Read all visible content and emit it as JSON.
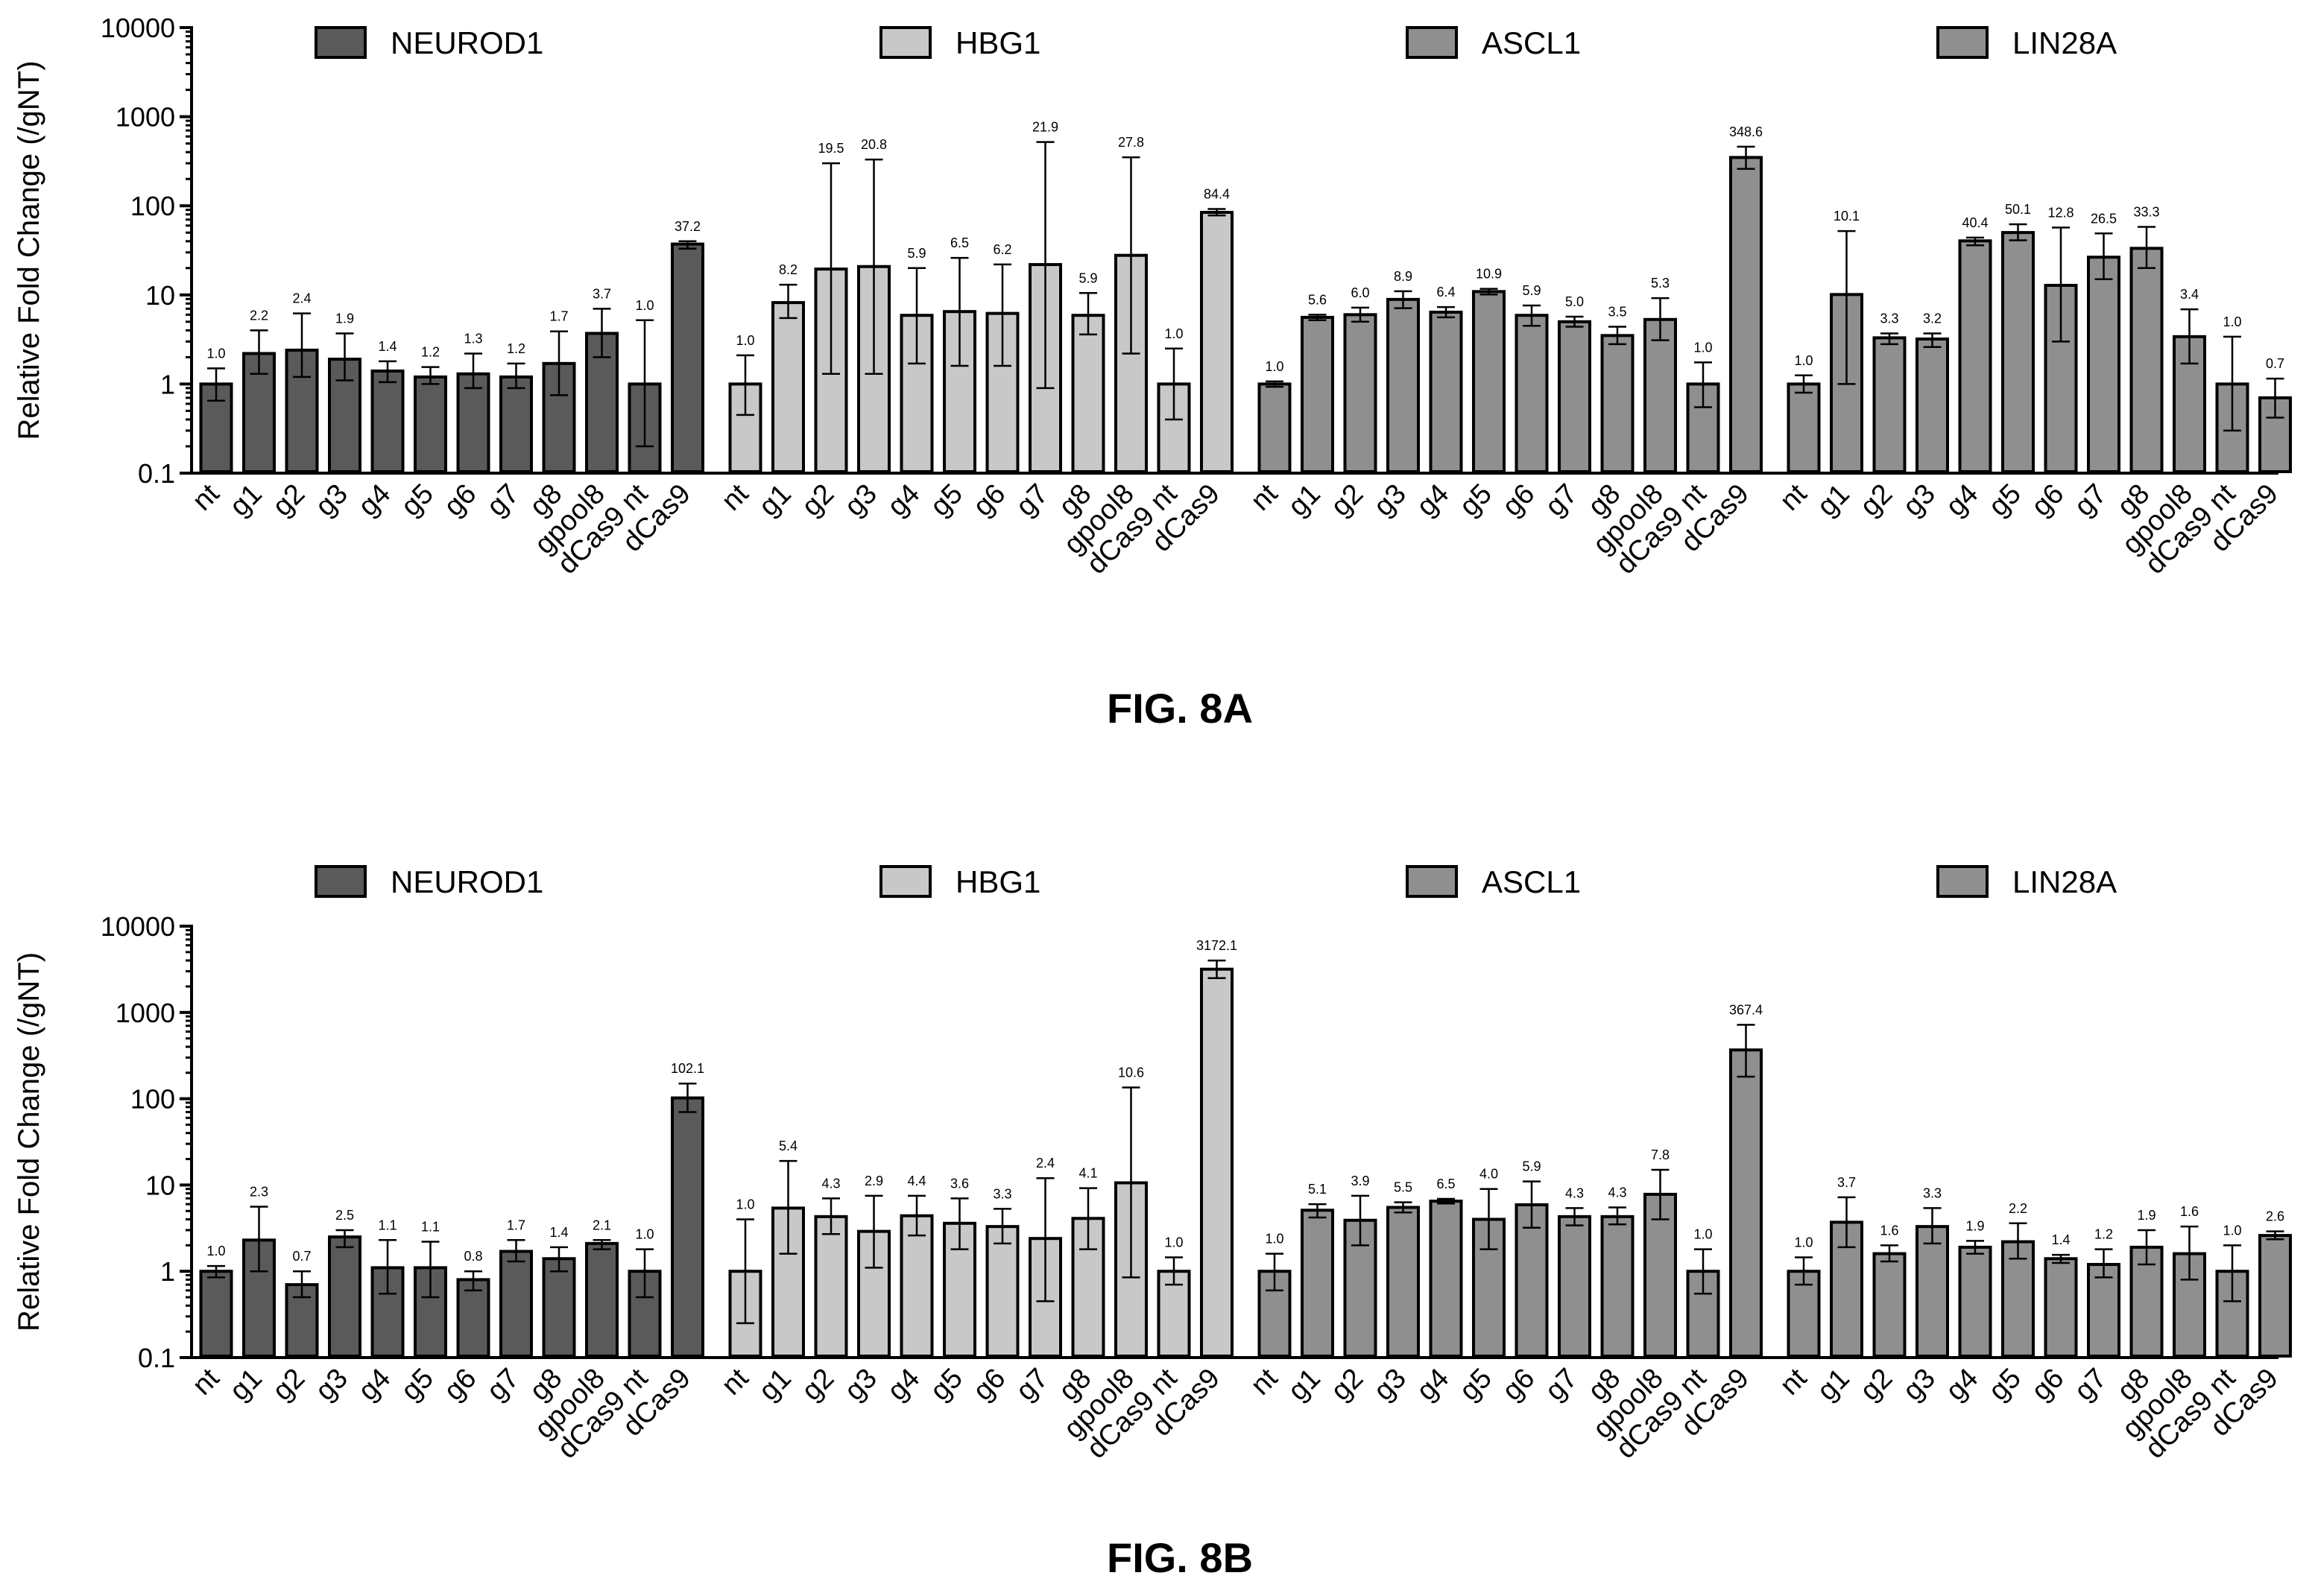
{
  "chart_data": [
    {
      "type": "bar",
      "caption": "FIG. 8A",
      "ylabel": "Relative Fold Change (/gNT)",
      "yscale": "log",
      "ylim": [
        0.1,
        10000
      ],
      "yticks": [
        "0.1",
        "1",
        "10",
        "100",
        "1000",
        "10000"
      ],
      "legend_placement": "top",
      "legend": [
        "NEUROD1",
        "HBG1",
        "ASCL1",
        "LIN28A"
      ],
      "groups": [
        {
          "name": "NEUROD1",
          "color": "#5a5a5a",
          "categories": [
            "nt",
            "g1",
            "g2",
            "g3",
            "g4",
            "g5",
            "g6",
            "g7",
            "g8",
            "gpool8",
            "dCas9 nt",
            "dCas9"
          ],
          "values": [
            1.0,
            2.2,
            2.4,
            1.9,
            1.4,
            1.2,
            1.3,
            1.2,
            1.7,
            3.7,
            1.0,
            37.2
          ],
          "labels": [
            "1.0",
            "2.2",
            "2.4",
            "1.9",
            "1.4",
            "1.2",
            "1.3",
            "1.2",
            "1.7",
            "3.7",
            "1.0",
            "37.2"
          ],
          "err_low": [
            0.65,
            1.3,
            1.2,
            1.1,
            1.05,
            1.0,
            0.9,
            0.9,
            0.75,
            2.0,
            0.2,
            33
          ],
          "err_high": [
            1.5,
            4.0,
            6.2,
            3.7,
            1.8,
            1.55,
            2.2,
            1.7,
            3.9,
            7.0,
            5.2,
            40
          ]
        },
        {
          "name": "HBG1",
          "color": "#c8c8c8",
          "categories": [
            "nt",
            "g1",
            "g2",
            "g3",
            "g4",
            "g5",
            "g6",
            "g7",
            "g8",
            "gpool8",
            "dCas9 nt",
            "dCas9"
          ],
          "values": [
            1.0,
            8.2,
            19.5,
            20.8,
            5.9,
            6.5,
            6.2,
            21.9,
            5.9,
            27.8,
            1.0,
            84.4
          ],
          "labels": [
            "1.0",
            "8.2",
            "19.5",
            "20.8",
            "5.9",
            "6.5",
            "6.2",
            "21.9",
            "5.9",
            "27.8",
            "1.0",
            "84.4"
          ],
          "err_low": [
            0.45,
            5.5,
            1.3,
            1.3,
            1.7,
            1.6,
            1.6,
            0.9,
            3.6,
            2.2,
            0.4,
            78
          ],
          "err_high": [
            2.1,
            13,
            300,
            330,
            20,
            26,
            22,
            520,
            10.5,
            350,
            2.5,
            92
          ]
        },
        {
          "name": "ASCL1",
          "color": "#8f8f8f",
          "categories": [
            "nt",
            "g1",
            "g2",
            "g3",
            "g4",
            "g5",
            "g6",
            "g7",
            "g8",
            "gpool8",
            "dCas9 nt",
            "dCas9"
          ],
          "values": [
            1.0,
            5.6,
            6.0,
            8.9,
            6.4,
            10.9,
            5.9,
            5.0,
            3.5,
            5.3,
            1.0,
            348.6
          ],
          "labels": [
            "1.0",
            "5.6",
            "6.0",
            "8.9",
            "6.4",
            "10.9",
            "5.9",
            "5.0",
            "3.5",
            "5.3",
            "1.0",
            "348.6"
          ],
          "err_low": [
            0.93,
            5.2,
            5.0,
            7.1,
            5.6,
            10.1,
            4.5,
            4.4,
            2.8,
            3.1,
            0.55,
            260
          ],
          "err_high": [
            1.07,
            6.0,
            7.2,
            11.0,
            7.3,
            11.7,
            7.6,
            5.7,
            4.4,
            9.2,
            1.75,
            460
          ]
        },
        {
          "name": "LIN28A",
          "color": "#8f8f8f",
          "categories": [
            "nt",
            "g1",
            "g2",
            "g3",
            "g4",
            "g5",
            "g6",
            "g7",
            "g8",
            "gpool8",
            "dCas9 nt",
            "dCas9"
          ],
          "values": [
            1.0,
            10.1,
            3.3,
            3.2,
            40.4,
            50.1,
            12.8,
            26.5,
            33.3,
            3.4,
            1.0,
            0.7
          ],
          "labels": [
            "1.0",
            "10.1",
            "3.3",
            "3.2",
            "40.4",
            "50.1",
            "12.8",
            "26.5",
            "33.3",
            "3.4",
            "1.0",
            "0.7"
          ],
          "err_low": [
            0.8,
            1.0,
            2.8,
            2.6,
            36,
            41,
            3.0,
            15,
            20,
            1.7,
            0.3,
            0.42
          ],
          "err_high": [
            1.25,
            52,
            3.7,
            3.7,
            44,
            62,
            57,
            49,
            58,
            6.9,
            3.4,
            1.15
          ]
        }
      ]
    },
    {
      "type": "bar",
      "caption": "FIG. 8B",
      "ylabel": "Relative Fold Change (/gNT)",
      "yscale": "log",
      "ylim": [
        0.1,
        10000
      ],
      "yticks": [
        "0.1",
        "1",
        "10",
        "100",
        "1000",
        "10000"
      ],
      "legend_placement": "top",
      "legend": [
        "NEUROD1",
        "HBG1",
        "ASCL1",
        "LIN28A"
      ],
      "groups": [
        {
          "name": "NEUROD1",
          "color": "#5a5a5a",
          "categories": [
            "nt",
            "g1",
            "g2",
            "g3",
            "g4",
            "g5",
            "g6",
            "g7",
            "g8",
            "gpool8",
            "dCas9 nt",
            "dCas9"
          ],
          "values": [
            1.0,
            2.3,
            0.7,
            2.5,
            1.1,
            1.1,
            0.8,
            1.7,
            1.4,
            2.1,
            1.0,
            102.1
          ],
          "labels": [
            "1.0",
            "2.3",
            "0.7",
            "2.5",
            "1.1",
            "1.1",
            "0.8",
            "1.7",
            "1.4",
            "2.1",
            "1.0",
            "102.1"
          ],
          "err_low": [
            0.85,
            1.0,
            0.5,
            1.9,
            0.55,
            0.5,
            0.6,
            1.3,
            1.0,
            1.8,
            0.5,
            70
          ],
          "err_high": [
            1.15,
            5.6,
            1.0,
            3.0,
            2.3,
            2.2,
            1.0,
            2.3,
            1.9,
            2.3,
            1.8,
            150
          ]
        },
        {
          "name": "HBG1",
          "color": "#c8c8c8",
          "categories": [
            "nt",
            "g1",
            "g2",
            "g3",
            "g4",
            "g5",
            "g6",
            "g7",
            "g8",
            "gpool8",
            "dCas9 nt",
            "dCas9"
          ],
          "values": [
            1.0,
            5.4,
            4.3,
            2.9,
            4.4,
            3.6,
            3.3,
            2.4,
            4.1,
            10.6,
            1.0,
            3172.1
          ],
          "labels": [
            "1.0",
            "5.4",
            "4.3",
            "2.9",
            "4.4",
            "3.6",
            "3.3",
            "2.4",
            "4.1",
            "10.6",
            "1.0",
            "3172.1"
          ],
          "err_low": [
            0.25,
            1.6,
            2.7,
            1.1,
            2.6,
            1.8,
            2.1,
            0.45,
            1.8,
            0.85,
            0.7,
            2500
          ],
          "err_high": [
            4.0,
            19,
            7.0,
            7.5,
            7.5,
            7.0,
            5.3,
            12,
            9.2,
            135,
            1.45,
            4000
          ]
        },
        {
          "name": "ASCL1",
          "color": "#8f8f8f",
          "categories": [
            "nt",
            "g1",
            "g2",
            "g3",
            "g4",
            "g5",
            "g6",
            "g7",
            "g8",
            "gpool8",
            "dCas9 nt",
            "dCas9"
          ],
          "values": [
            1.0,
            5.1,
            3.9,
            5.5,
            6.5,
            4.0,
            5.9,
            4.3,
            4.3,
            7.8,
            1.0,
            367.4
          ],
          "labels": [
            "1.0",
            "5.1",
            "3.9",
            "5.5",
            "6.5",
            "4.0",
            "5.9",
            "4.3",
            "4.3",
            "7.8",
            "1.0",
            "367.4"
          ],
          "err_low": [
            0.6,
            4.2,
            2.0,
            4.8,
            6.1,
            1.8,
            3.2,
            3.4,
            3.5,
            4.0,
            0.55,
            180
          ],
          "err_high": [
            1.6,
            6.0,
            7.5,
            6.3,
            6.9,
            9.0,
            11,
            5.4,
            5.5,
            15,
            1.8,
            720
          ]
        },
        {
          "name": "LIN28A",
          "color": "#8f8f8f",
          "categories": [
            "nt",
            "g1",
            "g2",
            "g3",
            "g4",
            "g5",
            "g6",
            "g7",
            "g8",
            "gpool8",
            "dCas9 nt",
            "dCas9"
          ],
          "values": [
            1.0,
            3.7,
            1.6,
            3.3,
            1.9,
            2.2,
            1.4,
            1.2,
            1.9,
            1.6,
            1.0,
            2.6
          ],
          "labels": [
            "1.0",
            "3.7",
            "1.6",
            "3.3",
            "1.9",
            "2.2",
            "1.4",
            "1.2",
            "1.9",
            "1.6",
            "1.0",
            "2.6"
          ],
          "err_low": [
            0.7,
            1.9,
            1.3,
            2.1,
            1.6,
            1.4,
            1.25,
            0.85,
            1.2,
            0.8,
            0.45,
            2.35
          ],
          "err_high": [
            1.45,
            7.2,
            2.0,
            5.4,
            2.25,
            3.6,
            1.55,
            1.8,
            3.0,
            3.3,
            2.0,
            2.9
          ]
        }
      ]
    }
  ]
}
